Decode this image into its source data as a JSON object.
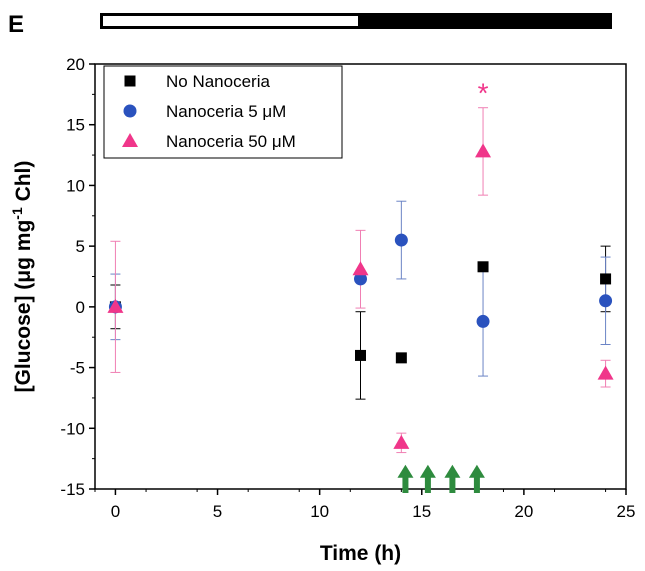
{
  "panel_label": "E",
  "light_dark_bar": {
    "light_until_h": 12,
    "dark_from_h": 12,
    "light_color": "#ffffff",
    "dark_color": "#000000"
  },
  "colors": {
    "no_nanoceria": "#000000",
    "nanoceria_5": "#2a52be",
    "nanoceria_50": "#f0368a",
    "arrow": "#2e8b3e"
  },
  "chart_data": {
    "type": "scatter",
    "title": "",
    "xlabel": "Time (h)",
    "ylabel_parts": [
      "[Glucose] (μg mg",
      "-1",
      " Chl)"
    ],
    "xlim": [
      -1,
      25
    ],
    "ylim": [
      -15,
      20
    ],
    "xticks": [
      0,
      5,
      10,
      15,
      20,
      25
    ],
    "yticks": [
      -15,
      -10,
      -5,
      0,
      5,
      10,
      15,
      20
    ],
    "legend": {
      "position": "top-left",
      "entries": [
        "No Nanoceria",
        "Nanoceria 5 μM",
        "Nanoceria 50 μM"
      ]
    },
    "series": [
      {
        "name": "No Nanoceria",
        "marker": "square",
        "points": [
          {
            "x": 0,
            "y": 0,
            "err": 1.8
          },
          {
            "x": 12,
            "y": -4,
            "err": 3.6
          },
          {
            "x": 14,
            "y": -4.2,
            "err": 0
          },
          {
            "x": 18,
            "y": 3.3,
            "err": 0
          },
          {
            "x": 24,
            "y": 2.3,
            "err": 2.7
          }
        ]
      },
      {
        "name": "Nanoceria 5 μM",
        "marker": "circle",
        "points": [
          {
            "x": 0,
            "y": 0,
            "err": 2.7
          },
          {
            "x": 12,
            "y": 2.3,
            "err": 0
          },
          {
            "x": 14,
            "y": 5.5,
            "err": 3.2
          },
          {
            "x": 18,
            "y": -1.2,
            "err": 4.5
          },
          {
            "x": 24,
            "y": 0.5,
            "err": 3.6
          }
        ]
      },
      {
        "name": "Nanoceria 50 μM",
        "marker": "triangle",
        "points": [
          {
            "x": 0,
            "y": 0,
            "err": 5.4
          },
          {
            "x": 12,
            "y": 3.1,
            "err": 3.2
          },
          {
            "x": 14,
            "y": -11.2,
            "err": 0.8
          },
          {
            "x": 18,
            "y": 12.8,
            "err": 3.6
          },
          {
            "x": 24,
            "y": -5.5,
            "err": 1.1
          }
        ]
      }
    ],
    "annotations": [
      {
        "text": "*",
        "x": 18,
        "y": 17.8,
        "color": "#f0368a"
      }
    ],
    "arrows_at_x": [
      14.2,
      15.3,
      16.5,
      17.7
    ]
  }
}
